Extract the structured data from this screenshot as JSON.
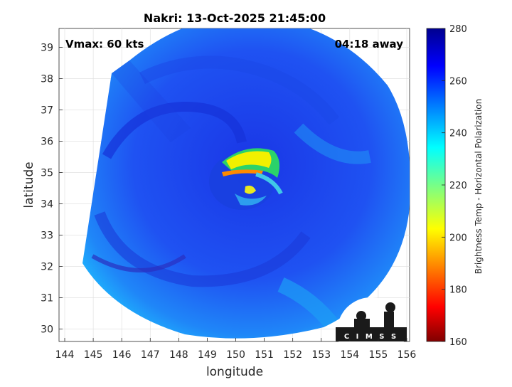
{
  "title": "Nakri: 13-Oct-2025 21:45:00",
  "vmax_text": "Vmax: 60 kts",
  "time_away_text": "04:18 away",
  "x_axis": {
    "label": "longitude",
    "ticks": [
      "144",
      "145",
      "146",
      "147",
      "148",
      "149",
      "150",
      "151",
      "152",
      "153",
      "154",
      "155",
      "156"
    ],
    "range": [
      143.8,
      156.1
    ]
  },
  "y_axis": {
    "label": "latitude",
    "ticks": [
      "30",
      "31",
      "32",
      "33",
      "34",
      "35",
      "36",
      "37",
      "38",
      "39"
    ],
    "range": [
      29.6,
      39.6
    ]
  },
  "colorbar": {
    "label": "Brightness Temp - Horizontal Polarization",
    "ticks": [
      "160",
      "180",
      "200",
      "220",
      "240",
      "260",
      "280"
    ],
    "range": [
      160,
      280
    ],
    "colormap": "jet"
  },
  "logo_text": "CIMSS",
  "grid": true,
  "colors": {
    "background_cool": "#1f50f0",
    "outer_edge": "#1ec8ff",
    "band_cold": "#fff000",
    "band_core": "#ff7800"
  }
}
